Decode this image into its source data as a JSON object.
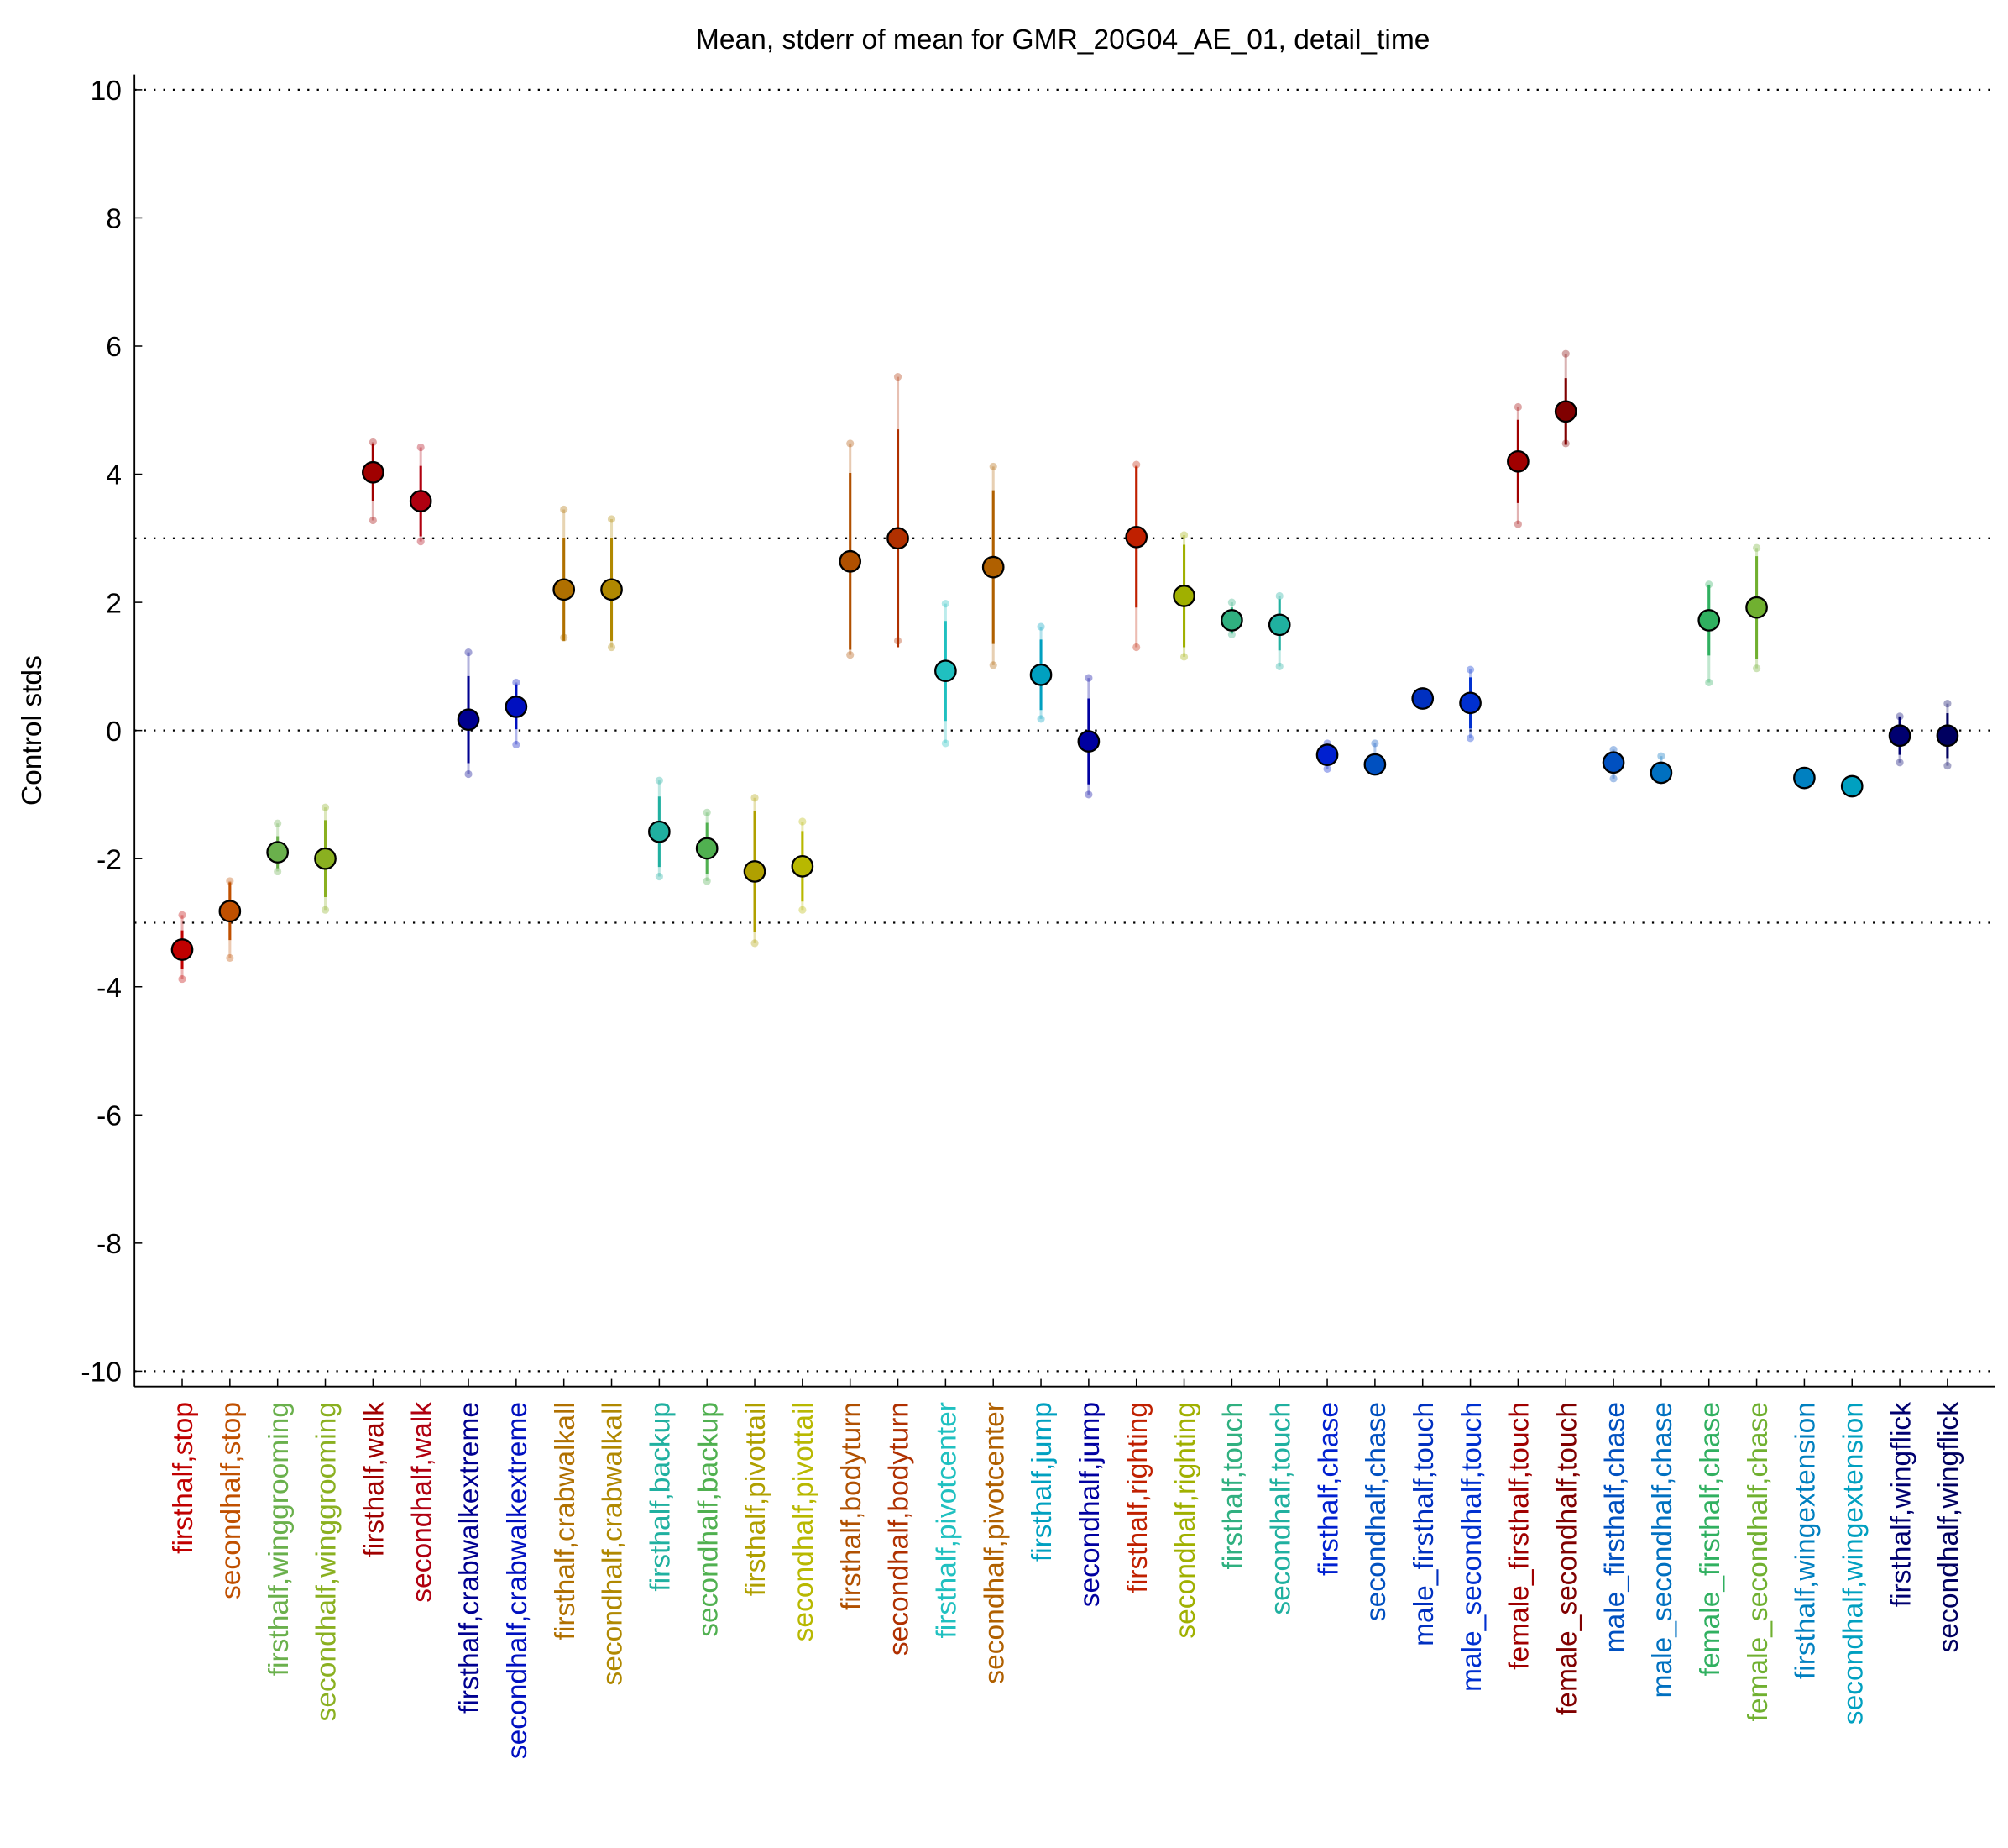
{
  "chart_data": {
    "type": "errorbar",
    "title": "Mean, stderr of mean for GMR_20G04_AE_01, detail_time",
    "y_label": "Control stds",
    "categories": [
      "firsthalf,stop",
      "secondhalf,stop",
      "firsthalf,winggrooming",
      "secondhalf,winggrooming",
      "firsthalf,walk",
      "secondhalf,walk",
      "firsthalf,crabwalkextreme",
      "secondhalf,crabwalkextreme",
      "firsthalf,crabwalkall",
      "secondhalf,crabwalkall",
      "firsthalf,backup",
      "secondhalf,backup",
      "firsthalf,pivottail",
      "secondhalf,pivottail",
      "firsthalf,bodyturn",
      "secondhalf,bodyturn",
      "firsthalf,pivotcenter",
      "secondhalf,pivotcenter",
      "firsthalf,jump",
      "secondhalf,jump",
      "firsthalf,righting",
      "secondhalf,righting",
      "firsthalf,touch",
      "secondhalf,touch",
      "firsthalf,chase",
      "secondhalf,chase",
      "male_firsthalf,touch",
      "male_secondhalf,touch",
      "female_firsthalf,touch",
      "female_secondhalf,touch",
      "male_firsthalf,chase",
      "male_secondhalf,chase",
      "female_firsthalf,chase",
      "female_secondhalf,chase",
      "firsthalf,wingextension",
      "secondhalf,wingextension",
      "firsthalf,wingflick",
      "secondhalf,wingflick"
    ],
    "values": [
      -3.42,
      -2.82,
      -1.9,
      -2.0,
      4.03,
      3.58,
      0.17,
      0.37,
      2.2,
      2.2,
      -1.58,
      -1.84,
      -2.2,
      -2.12,
      2.64,
      3.0,
      0.93,
      2.55,
      0.87,
      -0.17,
      3.02,
      2.1,
      1.72,
      1.65,
      -0.38,
      -0.53,
      0.5,
      0.43,
      4.2,
      4.98,
      -0.5,
      -0.66,
      1.72,
      1.92,
      -0.74,
      -0.87,
      -0.08,
      -0.08
    ],
    "errors": [
      0.3,
      0.45,
      0.25,
      0.6,
      0.45,
      0.55,
      0.68,
      0.35,
      0.8,
      0.8,
      0.55,
      0.4,
      0.95,
      0.55,
      1.38,
      1.7,
      0.78,
      1.2,
      0.55,
      0.67,
      1.1,
      0.8,
      0.2,
      0.4,
      0.15,
      0.1,
      0.08,
      0.4,
      0.65,
      0.52,
      0.12,
      0.1,
      0.55,
      0.8,
      0.05,
      0.05,
      0.3,
      0.35
    ],
    "lower": [
      -3.88,
      -3.55,
      -2.2,
      -2.8,
      3.28,
      2.95,
      -0.68,
      -0.22,
      1.45,
      1.3,
      -2.28,
      -2.35,
      -3.32,
      -2.8,
      1.18,
      1.4,
      -0.2,
      1.02,
      0.18,
      -1.0,
      1.3,
      1.15,
      1.5,
      1.0,
      -0.6,
      -0.62,
      0.4,
      -0.12,
      3.22,
      4.48,
      -0.75,
      -0.75,
      0.75,
      0.97,
      -0.8,
      -0.93,
      -0.5,
      -0.55
    ],
    "upper": [
      -2.88,
      -2.35,
      -1.45,
      -1.2,
      4.5,
      4.42,
      1.22,
      0.75,
      3.45,
      3.3,
      -0.78,
      -1.28,
      -1.05,
      -1.42,
      4.48,
      5.52,
      1.98,
      4.12,
      1.62,
      0.82,
      4.15,
      3.05,
      2.0,
      2.1,
      -0.2,
      -0.2,
      0.6,
      0.95,
      5.05,
      5.88,
      -0.3,
      -0.4,
      2.28,
      2.85,
      -0.68,
      -0.82,
      0.22,
      0.42
    ],
    "colors": [
      "#c00000",
      "#c05000",
      "#6ab04c",
      "#8ab020",
      "#a00000",
      "#b00010",
      "#000090",
      "#0010c0",
      "#b07000",
      "#b08800",
      "#20b0a0",
      "#50b050",
      "#b0a000",
      "#b8b800",
      "#b05000",
      "#b03000",
      "#20c0c0",
      "#b06000",
      "#00a0c0",
      "#0000a0",
      "#c02000",
      "#a0b000",
      "#30b080",
      "#20b0a0",
      "#0020d0",
      "#0050c0",
      "#0030c0",
      "#0030d0",
      "#a00000",
      "#800000",
      "#0050c0",
      "#0070c0",
      "#30b060",
      "#70b030",
      "#0080c0",
      "#00a0c0",
      "#000070",
      "#000060"
    ],
    "ylim": [
      -10.24,
      10.24
    ],
    "yticks": [
      -10,
      -8,
      -6,
      -4,
      -2,
      0,
      2,
      4,
      6,
      8,
      10
    ],
    "reference_lines": [
      10,
      3,
      0,
      -3,
      -10
    ]
  }
}
